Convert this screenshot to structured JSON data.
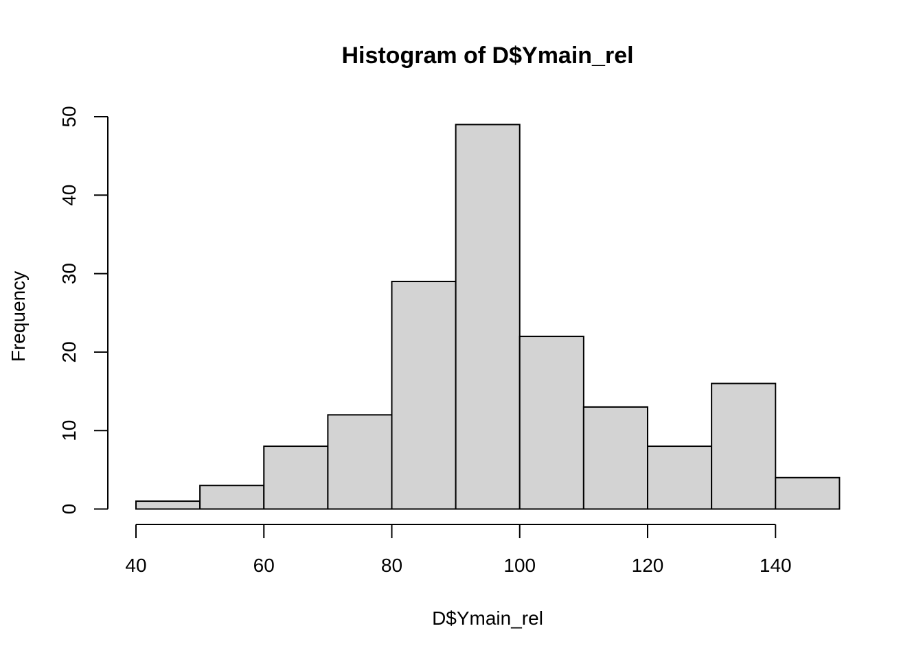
{
  "chart_data": {
    "type": "bar",
    "histogram": true,
    "title": "Histogram of D$Ymain_rel",
    "xlabel": "D$Ymain_rel",
    "ylabel": "Frequency",
    "bins": [
      {
        "from": 40,
        "to": 50,
        "count": 1
      },
      {
        "from": 50,
        "to": 60,
        "count": 3
      },
      {
        "from": 60,
        "to": 70,
        "count": 8
      },
      {
        "from": 70,
        "to": 80,
        "count": 12
      },
      {
        "from": 80,
        "to": 90,
        "count": 29
      },
      {
        "from": 90,
        "to": 100,
        "count": 49
      },
      {
        "from": 100,
        "to": 110,
        "count": 22
      },
      {
        "from": 110,
        "to": 120,
        "count": 13
      },
      {
        "from": 120,
        "to": 130,
        "count": 8
      },
      {
        "from": 130,
        "to": 140,
        "count": 16
      },
      {
        "from": 140,
        "to": 150,
        "count": 4
      }
    ],
    "xticks": [
      40,
      60,
      80,
      100,
      120,
      140
    ],
    "yticks": [
      0,
      10,
      20,
      30,
      40,
      50
    ],
    "xlim": [
      40,
      150
    ],
    "ylim": [
      0,
      50
    ],
    "grid": false,
    "colors": {
      "bar_fill": "#d3d3d3",
      "bar_stroke": "#000000"
    }
  }
}
